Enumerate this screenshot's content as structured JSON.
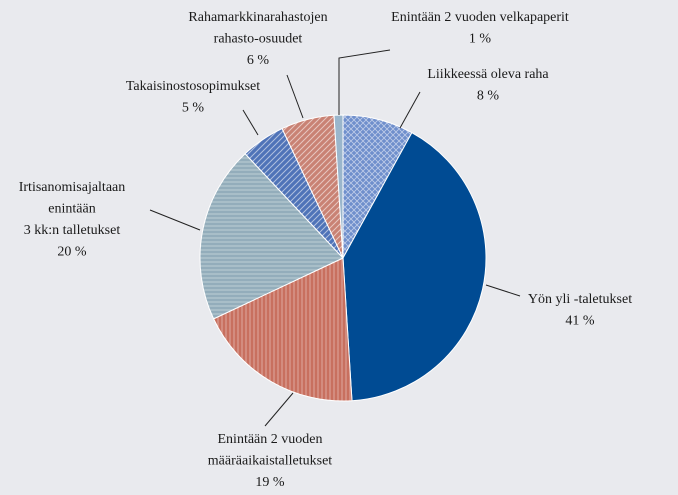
{
  "chart_data": {
    "type": "pie",
    "categories": [
      [
        "Liikkeessä oleva raha"
      ],
      [
        "Yön yli -taletukset"
      ],
      [
        "Enintään 2 vuoden",
        "määräaikaistalletukset"
      ],
      [
        "Irtisanomisajaltaan",
        "enintään",
        "3 kk:n talletukset"
      ],
      [
        "Takaisinostosopimukset"
      ],
      [
        "Rahamarkkinarahastojen",
        "rahasto-osuudet"
      ],
      [
        "Enintään 2 vuoden velkapaperit"
      ]
    ],
    "values": [
      8,
      41,
      19,
      20,
      5,
      6,
      1
    ],
    "value_labels": [
      "8 %",
      "41 %",
      "19 %",
      "20 %",
      "5 %",
      "6 %",
      "1 %"
    ],
    "colors": [
      "#6f8fcc",
      "#004b93",
      "#c8705f",
      "#93adbb",
      "#4f73b8",
      "#c98274",
      "#9ab6cc"
    ],
    "patterns": [
      "crosshatch",
      "none",
      "vertical",
      "horizontal",
      "diagonal",
      "diagonal",
      "none"
    ]
  }
}
